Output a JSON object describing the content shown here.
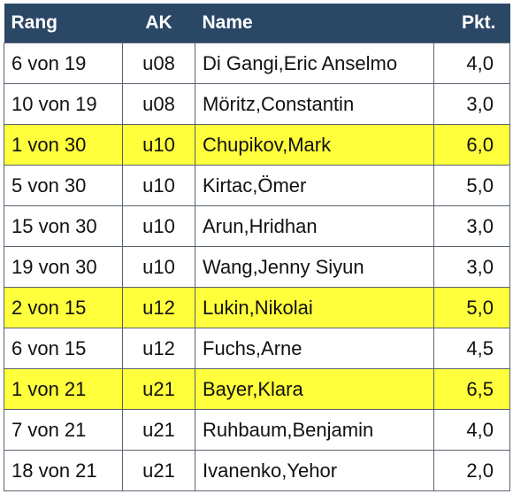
{
  "table": {
    "header": [
      "Rang",
      "AK",
      "Name",
      "Pkt."
    ],
    "header_color": "#2b4766",
    "highlight_color": "#ffff3c",
    "rows": [
      {
        "cells": [
          "6 von 19",
          "u08",
          "Di Gangi,Eric Anselmo",
          "4,0"
        ],
        "highlight": false
      },
      {
        "cells": [
          "10 von 19",
          "u08",
          "Möritz,Constantin",
          "3,0"
        ],
        "highlight": false
      },
      {
        "cells": [
          "1 von 30",
          "u10",
          "Chupikov,Mark",
          "6,0"
        ],
        "highlight": true
      },
      {
        "cells": [
          "5 von 30",
          "u10",
          "Kirtac,Ömer",
          "5,0"
        ],
        "highlight": false
      },
      {
        "cells": [
          "15 von 30",
          "u10",
          "Arun,Hridhan",
          "3,0"
        ],
        "highlight": false
      },
      {
        "cells": [
          "19 von 30",
          "u10",
          "Wang,Jenny Siyun",
          "3,0"
        ],
        "highlight": false
      },
      {
        "cells": [
          "2 von 15",
          "u12",
          "Lukin,Nikolai",
          "5,0"
        ],
        "highlight": true
      },
      {
        "cells": [
          "6 von 15",
          "u12",
          "Fuchs,Arne",
          "4,5"
        ],
        "highlight": false
      },
      {
        "cells": [
          "1 von 21",
          "u21",
          "Bayer,Klara",
          "6,5"
        ],
        "highlight": true
      },
      {
        "cells": [
          "7 von 21",
          "u21",
          "Ruhbaum,Benjamin",
          "4,0"
        ],
        "highlight": false
      },
      {
        "cells": [
          "18 von 21",
          "u21",
          "Ivanenko,Yehor",
          "2,0"
        ],
        "highlight": false
      }
    ]
  }
}
